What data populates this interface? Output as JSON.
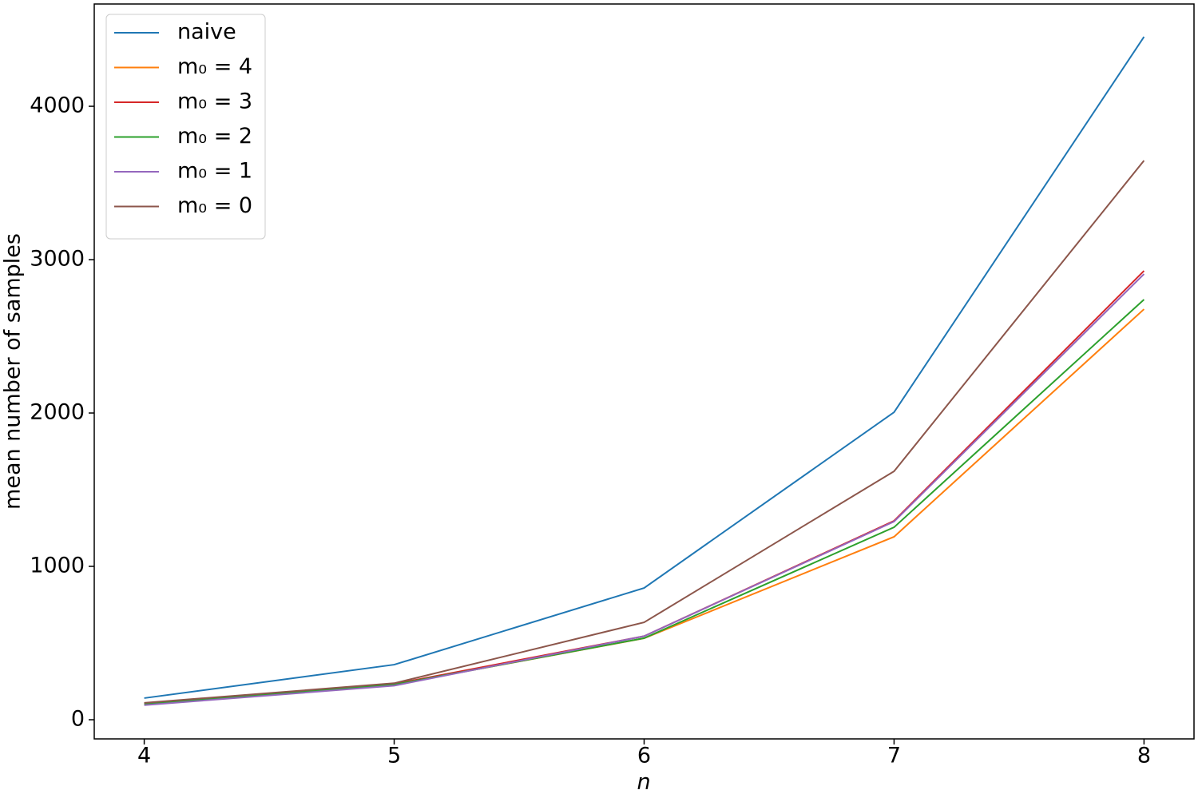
{
  "chart_data": {
    "type": "line",
    "x_label": "n",
    "y_label": "mean number of samples",
    "x": [
      4,
      5,
      6,
      7,
      8
    ],
    "series": [
      {
        "name": "naive",
        "color": "#1f77b4",
        "values": [
          141,
          359,
          859,
          2005,
          4453
        ]
      },
      {
        "name": "m₀ = 4",
        "color": "#ff7f0e",
        "values": [
          100,
          229,
          531,
          1193,
          2677
        ]
      },
      {
        "name": "m₀ = 3",
        "color": "#d62728",
        "values": [
          108,
          233,
          545,
          1297,
          2927
        ]
      },
      {
        "name": "m₀ = 2",
        "color": "#2ca02c",
        "values": [
          103,
          229,
          532,
          1255,
          2740
        ]
      },
      {
        "name": "m₀ = 1",
        "color": "#9467bd",
        "values": [
          95,
          222,
          545,
          1292,
          2906
        ]
      },
      {
        "name": "m₀ = 0",
        "color": "#8c564b",
        "values": [
          110,
          238,
          635,
          1620,
          3646
        ]
      }
    ],
    "xlim": [
      3.8,
      8.2
    ],
    "xticks": [
      4,
      5,
      6,
      7,
      8
    ],
    "ylim": [
      -125,
      4667
    ],
    "yticks": [
      0,
      1000,
      2000,
      3000,
      4000
    ],
    "grid": false,
    "legend": "upper left"
  }
}
